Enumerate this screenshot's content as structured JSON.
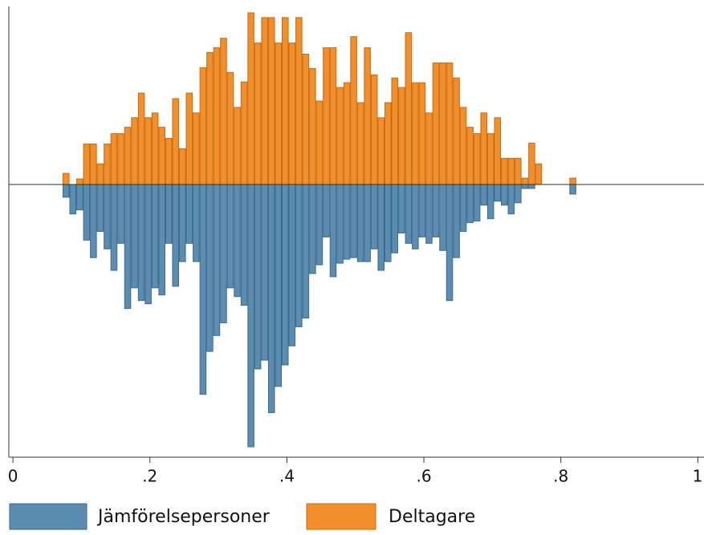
{
  "chart_data": {
    "type": "histogram",
    "bins": [
      0.0725,
      0.0825,
      0.0925,
      0.1025,
      0.1125,
      0.1225,
      0.1325,
      0.1425,
      0.1525,
      0.1625,
      0.1725,
      0.1825,
      0.1925,
      0.2025,
      0.2125,
      0.2225,
      0.2325,
      0.2425,
      0.2525,
      0.2625,
      0.2725,
      0.2825,
      0.2925,
      0.3025,
      0.3125,
      0.3225,
      0.3325,
      0.3425,
      0.3525,
      0.3625,
      0.3725,
      0.3825,
      0.3925,
      0.4025,
      0.4125,
      0.4225,
      0.4325,
      0.4425,
      0.4525,
      0.4625,
      0.4725,
      0.4825,
      0.4925,
      0.5025,
      0.5125,
      0.5225,
      0.5325,
      0.5425,
      0.5525,
      0.5625,
      0.5725,
      0.5825,
      0.5925,
      0.6025,
      0.6125,
      0.6225,
      0.6325,
      0.6425,
      0.6525,
      0.6625,
      0.6725,
      0.6825,
      0.6925,
      0.7025,
      0.7125,
      0.7225,
      0.7325,
      0.7425,
      0.7525,
      0.7625,
      0.7725,
      0.7825,
      0.7925,
      0.8025,
      0.8125,
      0.8225
    ],
    "series": [
      {
        "name": "Jämförelsepersoner",
        "color": "#5b8db0",
        "values": [
          -16,
          -37,
          -32,
          -70,
          -92,
          -59,
          -81,
          -108,
          -74,
          -156,
          -130,
          -146,
          -150,
          -130,
          -139,
          -74,
          -128,
          -97,
          -74,
          -97,
          -264,
          -210,
          -190,
          -174,
          -130,
          -141,
          -152,
          -330,
          -232,
          -221,
          -287,
          -254,
          -227,
          -203,
          -179,
          -168,
          -112,
          -101,
          -66,
          -116,
          -99,
          -94,
          -92,
          -97,
          -97,
          -81,
          -108,
          -97,
          -86,
          -61,
          -74,
          -81,
          -66,
          -74,
          -66,
          -83,
          -146,
          -92,
          -59,
          -48,
          -46,
          -26,
          -43,
          -21,
          -26,
          -37,
          -23,
          -5,
          -5,
          0,
          0,
          0,
          0,
          0,
          -12
        ]
      },
      {
        "name": "Deltagare",
        "color": "#f28e2b",
        "values": [
          14,
          0,
          7,
          51,
          51,
          26,
          51,
          64,
          64,
          72,
          84,
          115,
          84,
          90,
          72,
          58,
          108,
          45,
          115,
          90,
          147,
          166,
          172,
          184,
          141,
          97,
          129,
          216,
          178,
          210,
          210,
          178,
          210,
          178,
          210,
          164,
          146,
          105,
          172,
          172,
          122,
          128,
          186,
          103,
          172,
          138,
          84,
          103,
          134,
          122,
          191,
          128,
          128,
          90,
          153,
          153,
          153,
          134,
          97,
          72,
          64,
          90,
          64,
          84,
          33,
          33,
          33,
          8,
          52,
          26,
          0,
          0,
          0,
          0,
          8
        ]
      }
    ],
    "xlim": [
      -0.006,
      1.009
    ],
    "xticks": [
      0,
      {
        "value": 0.2,
        "label": ".2"
      },
      {
        "value": 0.4,
        "label": ".4"
      },
      {
        "value": 0.6,
        "label": ".6"
      },
      {
        "value": 0.8,
        "label": ".8"
      },
      1
    ],
    "ylim": [
      -335,
      220
    ]
  }
}
